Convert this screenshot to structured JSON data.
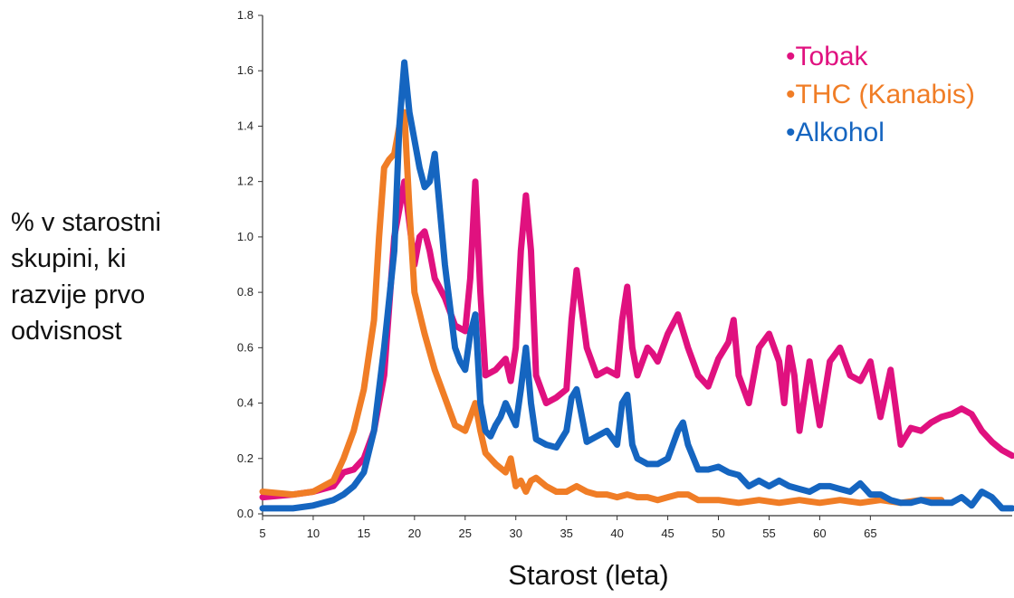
{
  "chart_data": {
    "type": "line",
    "xlabel": "Starost (leta)",
    "ylabel_lines": [
      "% v starostni",
      "skupini, ki",
      "razvije prvo",
      "odvisnost"
    ],
    "xlim": [
      5,
      79
    ],
    "ylim": [
      0,
      1.8
    ],
    "x_ticks": [
      5,
      10,
      15,
      20,
      25,
      30,
      35,
      40,
      45,
      50,
      55,
      60,
      65
    ],
    "y_ticks": [
      "0.0",
      "0.2",
      "0.4",
      "0.6",
      "0.8",
      "1.0",
      "1.2",
      "1.4",
      "1.6",
      "1.8"
    ],
    "legend_position": "top-right",
    "series": [
      {
        "name": "•Tobak",
        "color": "#e0117f",
        "x": [
          5,
          8,
          10,
          12,
          13,
          14,
          15,
          16,
          17,
          17.5,
          18,
          18.5,
          19,
          19.5,
          20,
          20.5,
          21,
          21.5,
          22,
          23,
          24,
          25,
          25.5,
          26,
          26.5,
          27,
          28,
          29,
          29.5,
          30,
          30.5,
          31,
          31.5,
          32,
          33,
          34,
          35,
          35.5,
          36,
          37,
          38,
          39,
          40,
          40.5,
          41,
          41.5,
          42,
          43,
          43.5,
          44,
          45,
          46,
          47,
          48,
          49,
          50,
          51,
          51.5,
          52,
          53,
          54,
          55,
          56,
          56.5,
          57,
          57.5,
          58,
          59,
          60,
          61,
          62,
          63,
          64,
          65,
          66,
          67,
          68,
          69,
          70,
          71,
          72,
          73,
          74,
          75,
          76,
          77,
          78,
          79
        ],
        "y": [
          0.06,
          0.07,
          0.08,
          0.1,
          0.15,
          0.16,
          0.2,
          0.3,
          0.5,
          0.75,
          1.0,
          1.1,
          1.2,
          1.05,
          0.9,
          1.0,
          1.02,
          0.95,
          0.85,
          0.78,
          0.68,
          0.66,
          0.85,
          1.2,
          0.8,
          0.5,
          0.52,
          0.56,
          0.48,
          0.6,
          0.95,
          1.15,
          0.95,
          0.5,
          0.4,
          0.42,
          0.45,
          0.7,
          0.88,
          0.6,
          0.5,
          0.52,
          0.5,
          0.7,
          0.82,
          0.6,
          0.5,
          0.6,
          0.58,
          0.55,
          0.65,
          0.72,
          0.6,
          0.5,
          0.46,
          0.56,
          0.62,
          0.7,
          0.5,
          0.4,
          0.6,
          0.65,
          0.55,
          0.4,
          0.6,
          0.5,
          0.3,
          0.55,
          0.32,
          0.55,
          0.6,
          0.5,
          0.48,
          0.55,
          0.35,
          0.52,
          0.25,
          0.31,
          0.3,
          0.33,
          0.35,
          0.36,
          0.38,
          0.36,
          0.3,
          0.26,
          0.23,
          0.21
        ]
      },
      {
        "name": "•THC (Kanabis)",
        "color": "#f07d26",
        "x": [
          5,
          8,
          10,
          12,
          13,
          14,
          15,
          16,
          16.5,
          17,
          17.5,
          18,
          18.5,
          19,
          19.5,
          20,
          21,
          22,
          23,
          24,
          25,
          25.5,
          26,
          26.5,
          27,
          28,
          29,
          29.5,
          30,
          30.5,
          31,
          31.5,
          32,
          33,
          34,
          35,
          36,
          37,
          38,
          39,
          40,
          41,
          42,
          43,
          44,
          45,
          46,
          47,
          48,
          49,
          50,
          52,
          54,
          56,
          58,
          60,
          62,
          64,
          66,
          68,
          70,
          72
        ],
        "y": [
          0.08,
          0.07,
          0.08,
          0.12,
          0.2,
          0.3,
          0.45,
          0.7,
          1.0,
          1.25,
          1.28,
          1.3,
          1.4,
          1.45,
          1.1,
          0.8,
          0.65,
          0.52,
          0.42,
          0.32,
          0.3,
          0.35,
          0.4,
          0.3,
          0.22,
          0.18,
          0.15,
          0.2,
          0.1,
          0.12,
          0.08,
          0.12,
          0.13,
          0.1,
          0.08,
          0.08,
          0.1,
          0.08,
          0.07,
          0.07,
          0.06,
          0.07,
          0.06,
          0.06,
          0.05,
          0.06,
          0.07,
          0.07,
          0.05,
          0.05,
          0.05,
          0.04,
          0.05,
          0.04,
          0.05,
          0.04,
          0.05,
          0.04,
          0.05,
          0.04,
          0.05,
          0.05
        ]
      },
      {
        "name": "•Alkohol",
        "color": "#1565c0",
        "x": [
          5,
          8,
          10,
          12,
          13,
          14,
          15,
          16,
          17,
          18,
          18.5,
          19,
          19.5,
          20,
          20.5,
          21,
          21.5,
          22,
          22.5,
          23,
          23.5,
          24,
          24.5,
          25,
          25.5,
          26,
          26.5,
          27,
          27.5,
          28,
          28.5,
          29,
          29.5,
          30,
          30.5,
          31,
          31.5,
          32,
          33,
          34,
          35,
          35.5,
          36,
          37,
          38,
          39,
          40,
          40.5,
          41,
          41.5,
          42,
          43,
          44,
          45,
          46,
          46.5,
          47,
          48,
          49,
          50,
          51,
          52,
          53,
          54,
          55,
          56,
          57,
          58,
          59,
          60,
          61,
          62,
          63,
          64,
          65,
          66,
          67,
          68,
          69,
          70,
          71,
          72,
          73,
          74,
          75,
          76,
          77,
          78,
          79
        ],
        "y": [
          0.02,
          0.02,
          0.03,
          0.05,
          0.07,
          0.1,
          0.15,
          0.3,
          0.6,
          0.95,
          1.4,
          1.63,
          1.45,
          1.35,
          1.25,
          1.18,
          1.2,
          1.3,
          1.1,
          0.9,
          0.75,
          0.6,
          0.55,
          0.52,
          0.65,
          0.72,
          0.4,
          0.3,
          0.28,
          0.32,
          0.35,
          0.4,
          0.36,
          0.32,
          0.45,
          0.6,
          0.4,
          0.27,
          0.25,
          0.24,
          0.3,
          0.42,
          0.45,
          0.26,
          0.28,
          0.3,
          0.25,
          0.4,
          0.43,
          0.25,
          0.2,
          0.18,
          0.18,
          0.2,
          0.3,
          0.33,
          0.25,
          0.16,
          0.16,
          0.17,
          0.15,
          0.14,
          0.1,
          0.12,
          0.1,
          0.12,
          0.1,
          0.09,
          0.08,
          0.1,
          0.1,
          0.09,
          0.08,
          0.11,
          0.07,
          0.07,
          0.05,
          0.04,
          0.04,
          0.05,
          0.04,
          0.04,
          0.04,
          0.06,
          0.03,
          0.08,
          0.06,
          0.02,
          0.02
        ]
      }
    ]
  }
}
